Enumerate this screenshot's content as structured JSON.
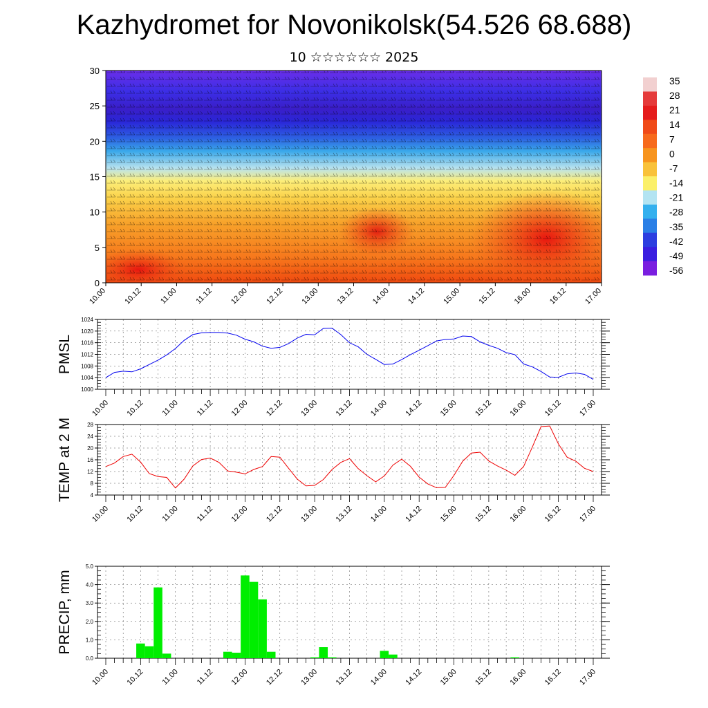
{
  "header": {
    "title": "Kazhydromet for Novonikolsk(54.526 68.688)",
    "subtitle": "10 ☆☆☆☆☆☆ 2025"
  },
  "colorbar": {
    "labels": [
      "35",
      "28",
      "21",
      "14",
      "7",
      "0",
      "-7",
      "-14",
      "-21",
      "-28",
      "-35",
      "-42",
      "-49",
      "-56"
    ],
    "colors": [
      "#f2d0d0",
      "#e53a3a",
      "#e51c1c",
      "#f04a18",
      "#f76a1c",
      "#f7941e",
      "#f9c23a",
      "#fbf06a",
      "#b3e4f2",
      "#34b0ee",
      "#2a7fe6",
      "#2c3ee0",
      "#3a1ee0",
      "#7a1ee0"
    ]
  },
  "chart_data": [
    {
      "type": "heatmap",
      "ylim": [
        0,
        30
      ],
      "yticks": [
        "0",
        "5",
        "10",
        "15",
        "20",
        "25",
        "30"
      ],
      "xticks": [
        "10.00",
        "10.12",
        "11.00",
        "11.12",
        "12.00",
        "12.12",
        "13.00",
        "13.12",
        "14.00",
        "14.12",
        "15.00",
        "15.12",
        "16.00",
        "16.12",
        "17.00"
      ],
      "description_levels": [
        {
          "height": 0,
          "temp": 24
        },
        {
          "height": 5,
          "temp": 14
        },
        {
          "height": 10,
          "temp": 4
        },
        {
          "height": 15,
          "temp": -6
        },
        {
          "height": 20,
          "temp": -35
        },
        {
          "height": 25,
          "temp": -58
        },
        {
          "height": 30,
          "temp": -52
        }
      ]
    },
    {
      "type": "line",
      "ylabel": "PMSL",
      "ylim": [
        1000,
        1024
      ],
      "yticks": [
        "1000",
        "1004",
        "1008",
        "1012",
        "1016",
        "1020",
        "1024"
      ],
      "xticks": [
        "10.00",
        "10.12",
        "11.00",
        "11.12",
        "12.00",
        "12.12",
        "13.00",
        "13.12",
        "14.00",
        "14.12",
        "15.00",
        "15.12",
        "16.00",
        "16.12",
        "17.00"
      ],
      "color": "#0000ee",
      "x": [
        0,
        3,
        6,
        9,
        12,
        15,
        18,
        21,
        24,
        27,
        30,
        33,
        36,
        39,
        42,
        45,
        48,
        51,
        54,
        57,
        60,
        63,
        66,
        69,
        72,
        75,
        78,
        81,
        84,
        87,
        90,
        93,
        96,
        99,
        102,
        105,
        108,
        111,
        114,
        117,
        120,
        123,
        126,
        129,
        132,
        135,
        138,
        141,
        144,
        147,
        150,
        153,
        156,
        159,
        162,
        165,
        168
      ],
      "y": [
        1004,
        1005.8,
        1006.2,
        1006,
        1007,
        1008.5,
        1010,
        1011.8,
        1014,
        1016.8,
        1018.8,
        1019.4,
        1019.5,
        1019.5,
        1019.3,
        1018.6,
        1017.2,
        1016.3,
        1014.8,
        1014.1,
        1014.4,
        1015.7,
        1017.6,
        1018.9,
        1018.7,
        1020.9,
        1021,
        1018.8,
        1016,
        1014.6,
        1012,
        1010.3,
        1008.5,
        1008.7,
        1010.2,
        1011.9,
        1013.4,
        1015,
        1016.6,
        1017.1,
        1017.3,
        1018.3,
        1018.1,
        1016.3,
        1015.1,
        1014.1,
        1012.6,
        1011.9,
        1008.7,
        1007.7,
        1006.1,
        1004.2,
        1004.1,
        1005.3,
        1005.6,
        1005.1,
        1003.4
      ]
    },
    {
      "type": "line",
      "ylabel": "TEMP at 2 M",
      "ylim": [
        4,
        28
      ],
      "yticks": [
        "4",
        "8",
        "12",
        "16",
        "20",
        "24",
        "28"
      ],
      "xticks": [
        "10.00",
        "10.12",
        "11.00",
        "11.12",
        "12.00",
        "12.12",
        "13.00",
        "13.12",
        "14.00",
        "14.12",
        "15.00",
        "15.12",
        "16.00",
        "16.12",
        "17.00"
      ],
      "color": "#ee0000",
      "x": [
        0,
        3,
        6,
        9,
        12,
        15,
        18,
        21,
        24,
        27,
        30,
        33,
        36,
        39,
        42,
        45,
        48,
        51,
        54,
        57,
        60,
        63,
        66,
        69,
        72,
        75,
        78,
        81,
        84,
        87,
        90,
        93,
        96,
        99,
        102,
        105,
        108,
        111,
        114,
        117,
        120,
        123,
        126,
        129,
        132,
        135,
        138,
        141,
        144,
        147,
        150,
        153,
        156,
        159,
        162,
        165,
        168
      ],
      "y": [
        13.7,
        14.9,
        17.1,
        17.9,
        15.2,
        11.3,
        10.3,
        10,
        6.4,
        9.4,
        13.9,
        16.1,
        16.6,
        15.1,
        12.2,
        11.8,
        11.2,
        12.7,
        13.7,
        17.1,
        16.9,
        13.1,
        9.4,
        7.1,
        7.3,
        9.3,
        12.7,
        15.1,
        16.4,
        13,
        10.6,
        8.5,
        10.5,
        14.2,
        16.2,
        13.8,
        10.1,
        7.8,
        6.5,
        6.6,
        10.7,
        15.5,
        18.3,
        18.6,
        15.6,
        13.9,
        12.5,
        10.7,
        13.7,
        20.3,
        27.3,
        27.5,
        21.4,
        16.9,
        15.5,
        13.1,
        12
      ]
    },
    {
      "type": "bar",
      "ylabel": "PRECIP, mm",
      "ylim": [
        0,
        5
      ],
      "yticks": [
        "0.0",
        "1.0",
        "2.0",
        "3.0",
        "4.0",
        "5.0"
      ],
      "xticks": [
        "10.00",
        "10.12",
        "11.00",
        "11.12",
        "12.00",
        "12.12",
        "13.00",
        "13.12",
        "14.00",
        "14.12",
        "15.00",
        "15.12",
        "16.00",
        "16.12",
        "17.00"
      ],
      "color": "#00ee00",
      "bar_width_hours": 3,
      "bars": [
        {
          "x": 12,
          "value": 0.8
        },
        {
          "x": 15,
          "value": 0.65
        },
        {
          "x": 18,
          "value": 3.85
        },
        {
          "x": 21,
          "value": 0.25
        },
        {
          "x": 42,
          "value": 0.35
        },
        {
          "x": 45,
          "value": 0.3
        },
        {
          "x": 48,
          "value": 4.5
        },
        {
          "x": 51,
          "value": 4.15
        },
        {
          "x": 54,
          "value": 3.2
        },
        {
          "x": 57,
          "value": 0.35
        },
        {
          "x": 72,
          "value": 0.05
        },
        {
          "x": 75,
          "value": 0.6
        },
        {
          "x": 78,
          "value": 0.05
        },
        {
          "x": 96,
          "value": 0.4
        },
        {
          "x": 99,
          "value": 0.2
        },
        {
          "x": 141,
          "value": 0.05
        }
      ]
    }
  ]
}
